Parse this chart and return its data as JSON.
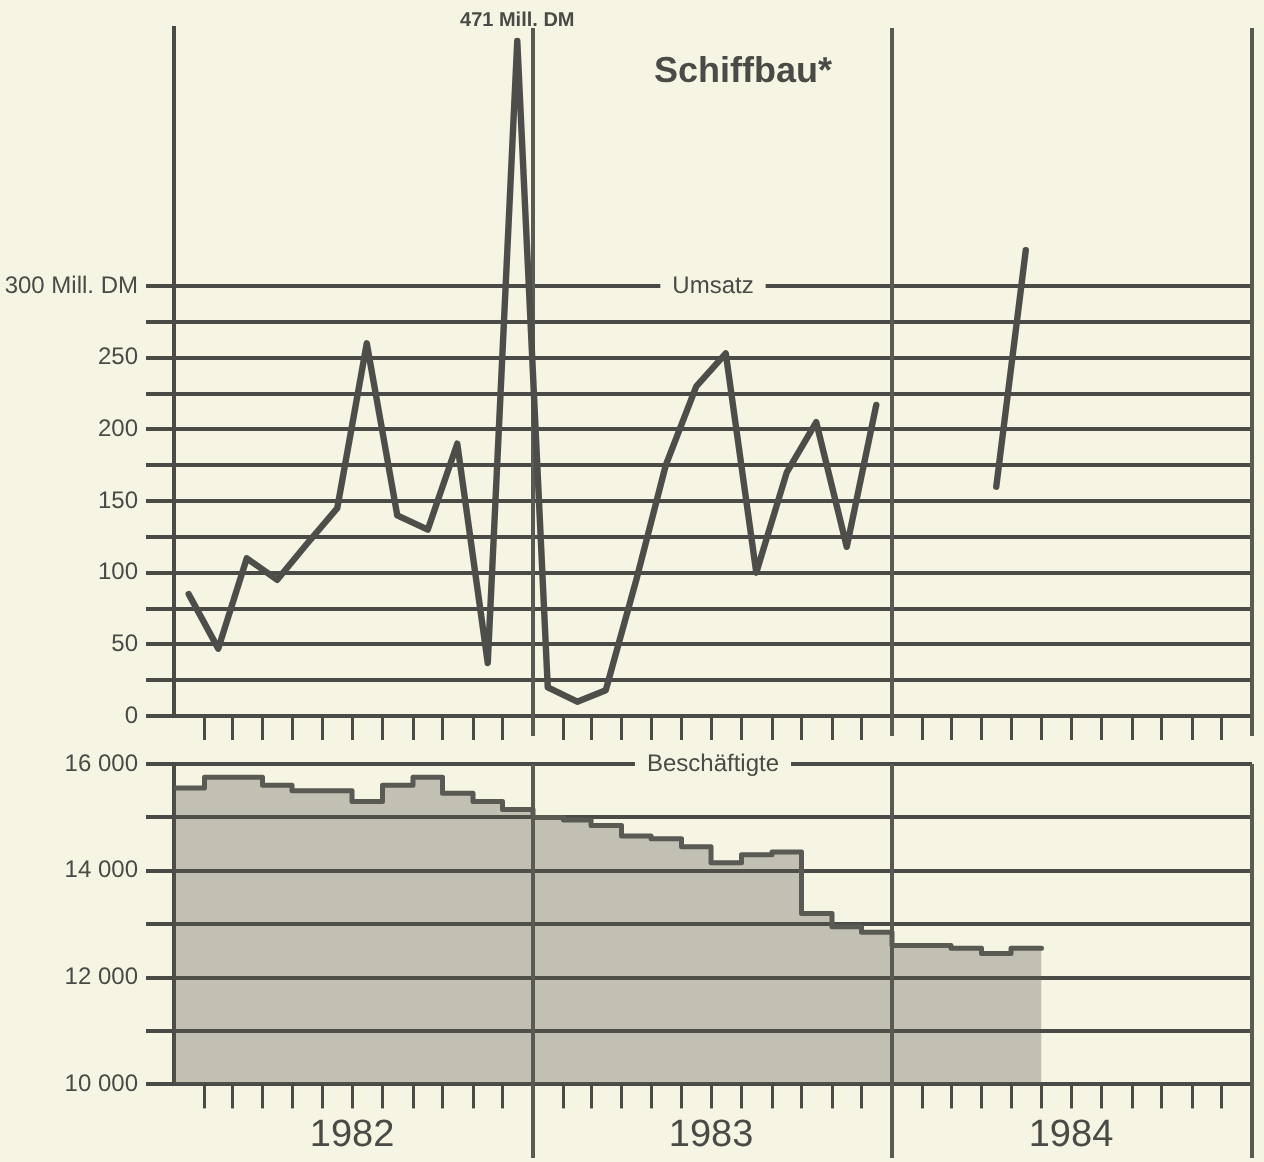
{
  "chart_data": [
    {
      "type": "line",
      "title": "Schiffbau*",
      "subtitle": "Umsatz",
      "x": [
        "1982-01-16",
        "1982-02-15",
        "1982-03-16",
        "1982-04-16",
        "1982-05-16",
        "1982-06-16",
        "1982-07-16",
        "1982-08-16",
        "1982-09-16",
        "1982-10-16",
        "1982-11-16",
        "1982-12-16",
        "1983-01-16",
        "1983-02-15",
        "1983-03-16",
        "1983-04-16",
        "1983-05-16",
        "1983-06-16",
        "1983-07-16",
        "1983-08-16",
        "1983-09-16",
        "1983-10-16",
        "1983-11-16",
        "1983-12-16",
        "1984-01-16",
        "1984-02-15",
        "1984-03-16",
        "1984-04-16",
        "1984-05-16"
      ],
      "series": [
        {
          "color": "#4d4d4a",
          "values": [
            85,
            47,
            110,
            95,
            120,
            145,
            260,
            140,
            130,
            190,
            37,
            471,
            20,
            10,
            18,
            95,
            175,
            230,
            253,
            100,
            170,
            205,
            118,
            217,
            null,
            null,
            null,
            160,
            325
          ]
        }
      ],
      "annotations": [
        {
          "text": "471 Mill. DM",
          "x": "1982-12-16",
          "y": 471
        }
      ],
      "xlim": [
        "1982-01-01",
        "1985-01-01"
      ],
      "xticks": [
        {
          "value": "1982-02-01",
          "label": null
        },
        {
          "value": "1982-03-01",
          "label": null
        },
        {
          "value": "1982-04-01",
          "label": null
        },
        {
          "value": "1982-05-01",
          "label": null
        },
        {
          "value": "1982-06-01",
          "label": null
        },
        {
          "value": "1982-07-01",
          "label": null
        },
        {
          "value": "1982-08-01",
          "label": null
        },
        {
          "value": "1982-09-01",
          "label": null
        },
        {
          "value": "1982-10-01",
          "label": null
        },
        {
          "value": "1982-11-01",
          "label": null
        },
        {
          "value": "1982-12-01",
          "label": null
        },
        {
          "value": "1983-02-01",
          "label": null
        },
        {
          "value": "1983-03-01",
          "label": null
        },
        {
          "value": "1983-04-01",
          "label": null
        },
        {
          "value": "1983-05-01",
          "label": null
        },
        {
          "value": "1983-06-01",
          "label": null
        },
        {
          "value": "1983-07-01",
          "label": null
        },
        {
          "value": "1983-08-01",
          "label": null
        },
        {
          "value": "1983-09-01",
          "label": null
        },
        {
          "value": "1983-10-01",
          "label": null
        },
        {
          "value": "1983-11-01",
          "label": null
        },
        {
          "value": "1983-12-01",
          "label": null
        },
        {
          "value": "1984-02-01",
          "label": null
        },
        {
          "value": "1984-03-01",
          "label": null
        },
        {
          "value": "1984-04-01",
          "label": null
        },
        {
          "value": "1984-05-01",
          "label": null
        },
        {
          "value": "1984-06-01",
          "label": null
        },
        {
          "value": "1984-07-01",
          "label": null
        },
        {
          "value": "1984-08-01",
          "label": null
        },
        {
          "value": "1984-09-01",
          "label": null
        },
        {
          "value": "1984-10-01",
          "label": null
        },
        {
          "value": "1984-11-01",
          "label": null
        },
        {
          "value": "1984-12-01",
          "label": null
        }
      ],
      "ylim": [
        0,
        480
      ],
      "yticks": [
        0,
        {
          "value": 25,
          "label": null
        },
        50,
        {
          "value": 75,
          "label": null
        },
        100,
        {
          "value": 125,
          "label": null
        },
        150,
        {
          "value": 175,
          "label": null
        },
        200,
        {
          "value": 225,
          "label": null
        },
        250,
        {
          "value": 275,
          "label": null
        },
        {
          "value": 300,
          "label": "300 Mill. DM"
        }
      ],
      "ref_lines": [
        {
          "axis": "x",
          "value": "1983-01-01",
          "color": "#5a5a55"
        },
        {
          "axis": "x",
          "value": "1984-01-01",
          "color": "#5a5a55"
        },
        {
          "axis": "x",
          "value": "1985-01-01",
          "color": "#5a5a55"
        }
      ],
      "grid": "y",
      "tick_labels": "y",
      "legend": false,
      "marker": "none",
      "line_style": "solid"
    },
    {
      "type": "area",
      "title": "Beschäftigte",
      "x": [
        "1982-01",
        "1982-02",
        "1982-02",
        "1982-03",
        "1982-03",
        "1982-04",
        "1982-04",
        "1982-05",
        "1982-05",
        "1982-06",
        "1982-06",
        "1982-07",
        "1982-07",
        "1982-08",
        "1982-08",
        "1982-09",
        "1982-09",
        "1982-10",
        "1982-10",
        "1982-11",
        "1982-11",
        "1982-12",
        "1982-12",
        "1983-01",
        "1983-01",
        "1983-02",
        "1983-02",
        "1983-03",
        "1983-03",
        "1983-04",
        "1983-04",
        "1983-05",
        "1983-05",
        "1983-06",
        "1983-06",
        "1983-07",
        "1983-07",
        "1983-08",
        "1983-08",
        "1983-09",
        "1983-09",
        "1983-10",
        "1983-10",
        "1983-11",
        "1983-11",
        "1983-12",
        "1983-12",
        "1984-01",
        "1984-01",
        "1984-02",
        "1984-02",
        "1984-03",
        "1984-03",
        "1984-04",
        "1984-04",
        "1984-05",
        "1984-05",
        "1984-06"
      ],
      "series": [
        {
          "color": "#5a5a55",
          "values": [
            15550,
            15550,
            15750,
            15750,
            15750,
            15750,
            15600,
            15600,
            15500,
            15500,
            15500,
            15500,
            15300,
            15300,
            15600,
            15600,
            15750,
            15750,
            15450,
            15450,
            15300,
            15300,
            15150,
            15150,
            15000,
            15000,
            14950,
            14950,
            14850,
            14850,
            14650,
            14650,
            14600,
            14600,
            14450,
            14450,
            14150,
            14150,
            14300,
            14300,
            14350,
            14350,
            13200,
            13200,
            12950,
            12950,
            12850,
            12850,
            12600,
            12600,
            12600,
            12600,
            12550,
            12550,
            12450,
            12450,
            12550,
            12550
          ]
        }
      ],
      "xlim": [
        "1982-01-01",
        "1985-01-01"
      ],
      "xticks": [
        {
          "value": "1982-02-01",
          "label": null
        },
        {
          "value": "1982-03-01",
          "label": null
        },
        {
          "value": "1982-04-01",
          "label": null
        },
        {
          "value": "1982-05-01",
          "label": null
        },
        {
          "value": "1982-06-01",
          "label": null
        },
        {
          "value": "1982-07-01",
          "label": "1982"
        },
        {
          "value": "1982-08-01",
          "label": null
        },
        {
          "value": "1982-09-01",
          "label": null
        },
        {
          "value": "1982-10-01",
          "label": null
        },
        {
          "value": "1982-11-01",
          "label": null
        },
        {
          "value": "1982-12-01",
          "label": null
        },
        {
          "value": "1983-02-01",
          "label": null
        },
        {
          "value": "1983-03-01",
          "label": null
        },
        {
          "value": "1983-04-01",
          "label": null
        },
        {
          "value": "1983-05-01",
          "label": null
        },
        {
          "value": "1983-06-01",
          "label": null
        },
        {
          "value": "1983-07-01",
          "label": "1983"
        },
        {
          "value": "1983-08-01",
          "label": null
        },
        {
          "value": "1983-09-01",
          "label": null
        },
        {
          "value": "1983-10-01",
          "label": null
        },
        {
          "value": "1983-11-01",
          "label": null
        },
        {
          "value": "1983-12-01",
          "label": null
        },
        {
          "value": "1984-02-01",
          "label": null
        },
        {
          "value": "1984-03-01",
          "label": null
        },
        {
          "value": "1984-04-01",
          "label": null
        },
        {
          "value": "1984-05-01",
          "label": null
        },
        {
          "value": "1984-06-01",
          "label": null
        },
        {
          "value": "1984-07-01",
          "label": "1984"
        },
        {
          "value": "1984-08-01",
          "label": null
        },
        {
          "value": "1984-09-01",
          "label": null
        },
        {
          "value": "1984-10-01",
          "label": null
        },
        {
          "value": "1984-11-01",
          "label": null
        },
        {
          "value": "1984-12-01",
          "label": null
        }
      ],
      "ylim": [
        10000,
        16000
      ],
      "yticks": [
        {
          "value": 10000,
          "label": "10 000"
        },
        {
          "value": 11000,
          "label": null
        },
        {
          "value": 12000,
          "label": "12 000"
        },
        {
          "value": 13000,
          "label": null
        },
        {
          "value": 14000,
          "label": "14 000"
        },
        {
          "value": 15000,
          "label": null
        },
        {
          "value": 16000,
          "label": "16 000"
        }
      ],
      "ref_lines": [
        {
          "axis": "x",
          "value": "1983-01-01",
          "color": "#5a5a55"
        },
        {
          "axis": "x",
          "value": "1984-01-01",
          "color": "#5a5a55"
        },
        {
          "axis": "x",
          "value": "1985-01-01",
          "color": "#5a5a55"
        }
      ],
      "grid": "y",
      "legend": false,
      "marker": "none"
    }
  ]
}
